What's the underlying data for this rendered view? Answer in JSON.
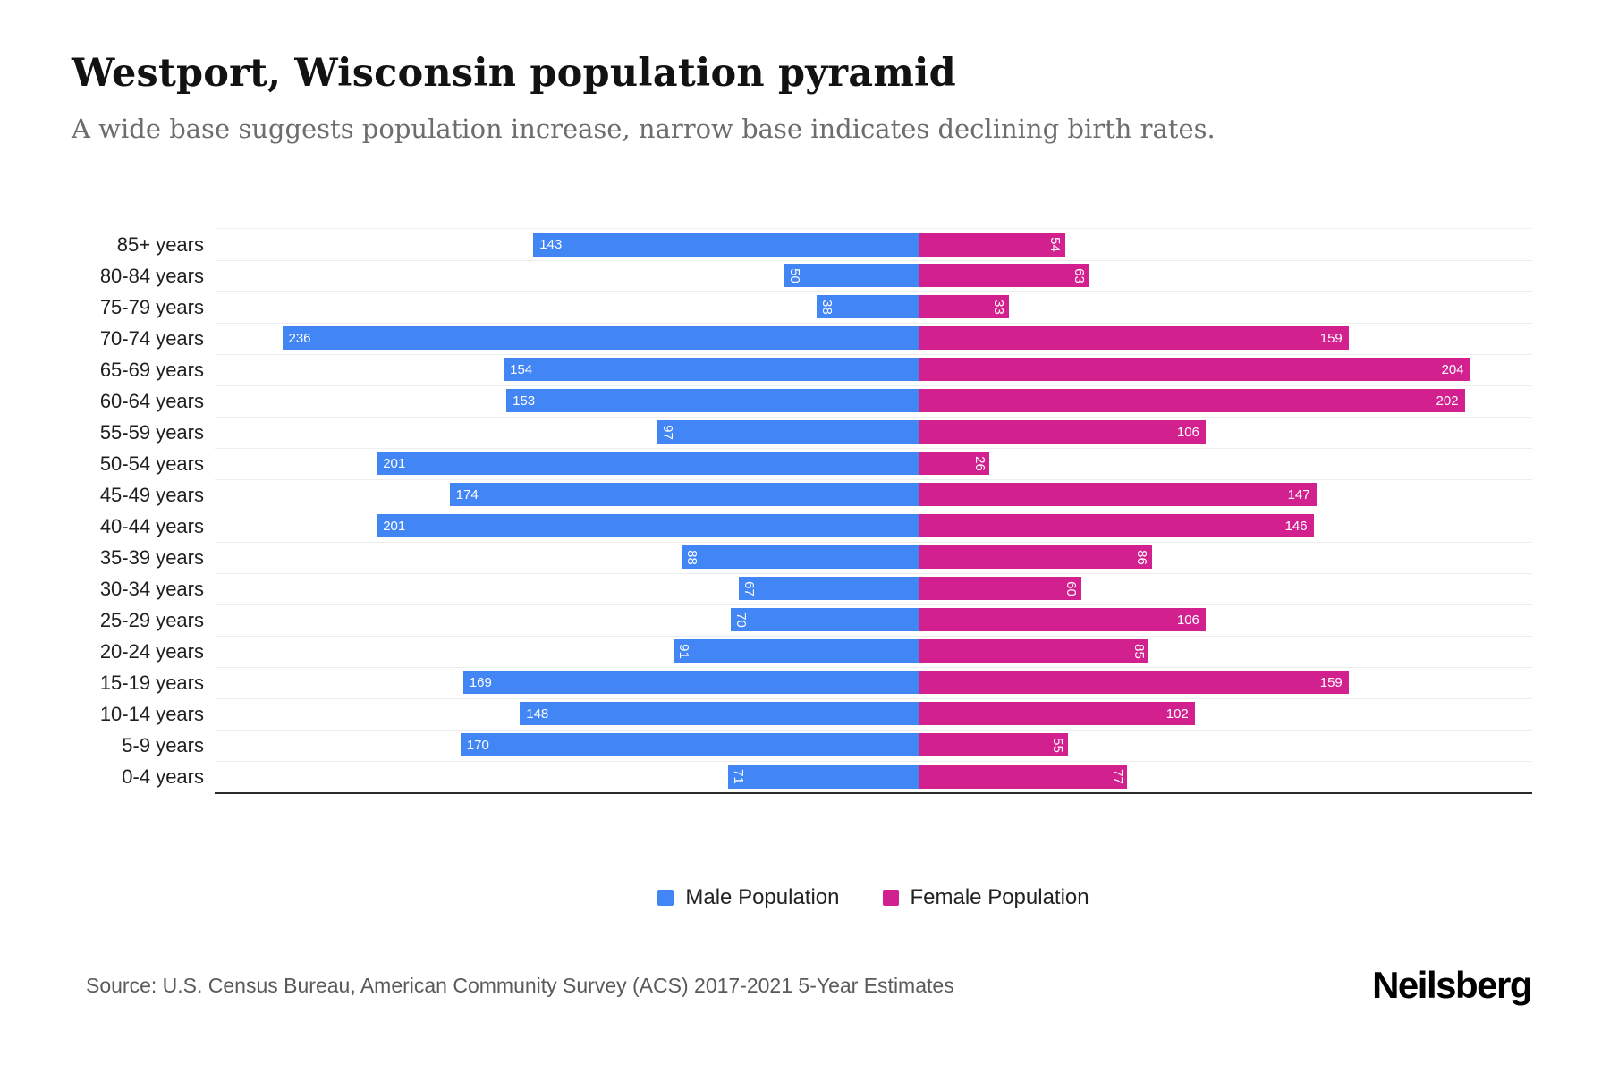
{
  "header": {
    "title": "Westport, Wisconsin population pyramid",
    "subtitle": "A wide base suggests population increase, narrow base indicates declining birth rates."
  },
  "legend": {
    "male_label": "Male Population",
    "female_label": "Female Population"
  },
  "footer": {
    "source": "Source: U.S. Census Bureau, American Community Survey (ACS) 2017-2021 5-Year Estimates",
    "brand": "Neilsberg"
  },
  "colors": {
    "male": "#4285F4",
    "female": "#D2218F"
  },
  "chart_data": {
    "type": "bar",
    "variant": "population-pyramid",
    "title": "Westport, Wisconsin population pyramid",
    "categories": [
      "85+ years",
      "80-84 years",
      "75-79 years",
      "70-74 years",
      "65-69 years",
      "60-64 years",
      "55-59 years",
      "50-54 years",
      "45-49 years",
      "40-44 years",
      "35-39 years",
      "30-34 years",
      "25-29 years",
      "20-24 years",
      "15-19 years",
      "10-14 years",
      "5-9 years",
      "0-4 years"
    ],
    "series": [
      {
        "name": "Male Population",
        "side": "left",
        "color": "#4285F4",
        "values": [
          143,
          50,
          38,
          236,
          154,
          153,
          97,
          201,
          174,
          201,
          88,
          67,
          70,
          91,
          169,
          148,
          170,
          71
        ]
      },
      {
        "name": "Female Population",
        "side": "right",
        "color": "#D2218F",
        "values": [
          54,
          63,
          33,
          159,
          204,
          202,
          106,
          26,
          147,
          146,
          86,
          60,
          106,
          85,
          159,
          102,
          55,
          77
        ]
      }
    ],
    "male_axis_max": 261,
    "female_axis_max": 227,
    "value_label_rotate_below": 100,
    "grid": "horizontal-light",
    "legend_position": "bottom-center"
  }
}
